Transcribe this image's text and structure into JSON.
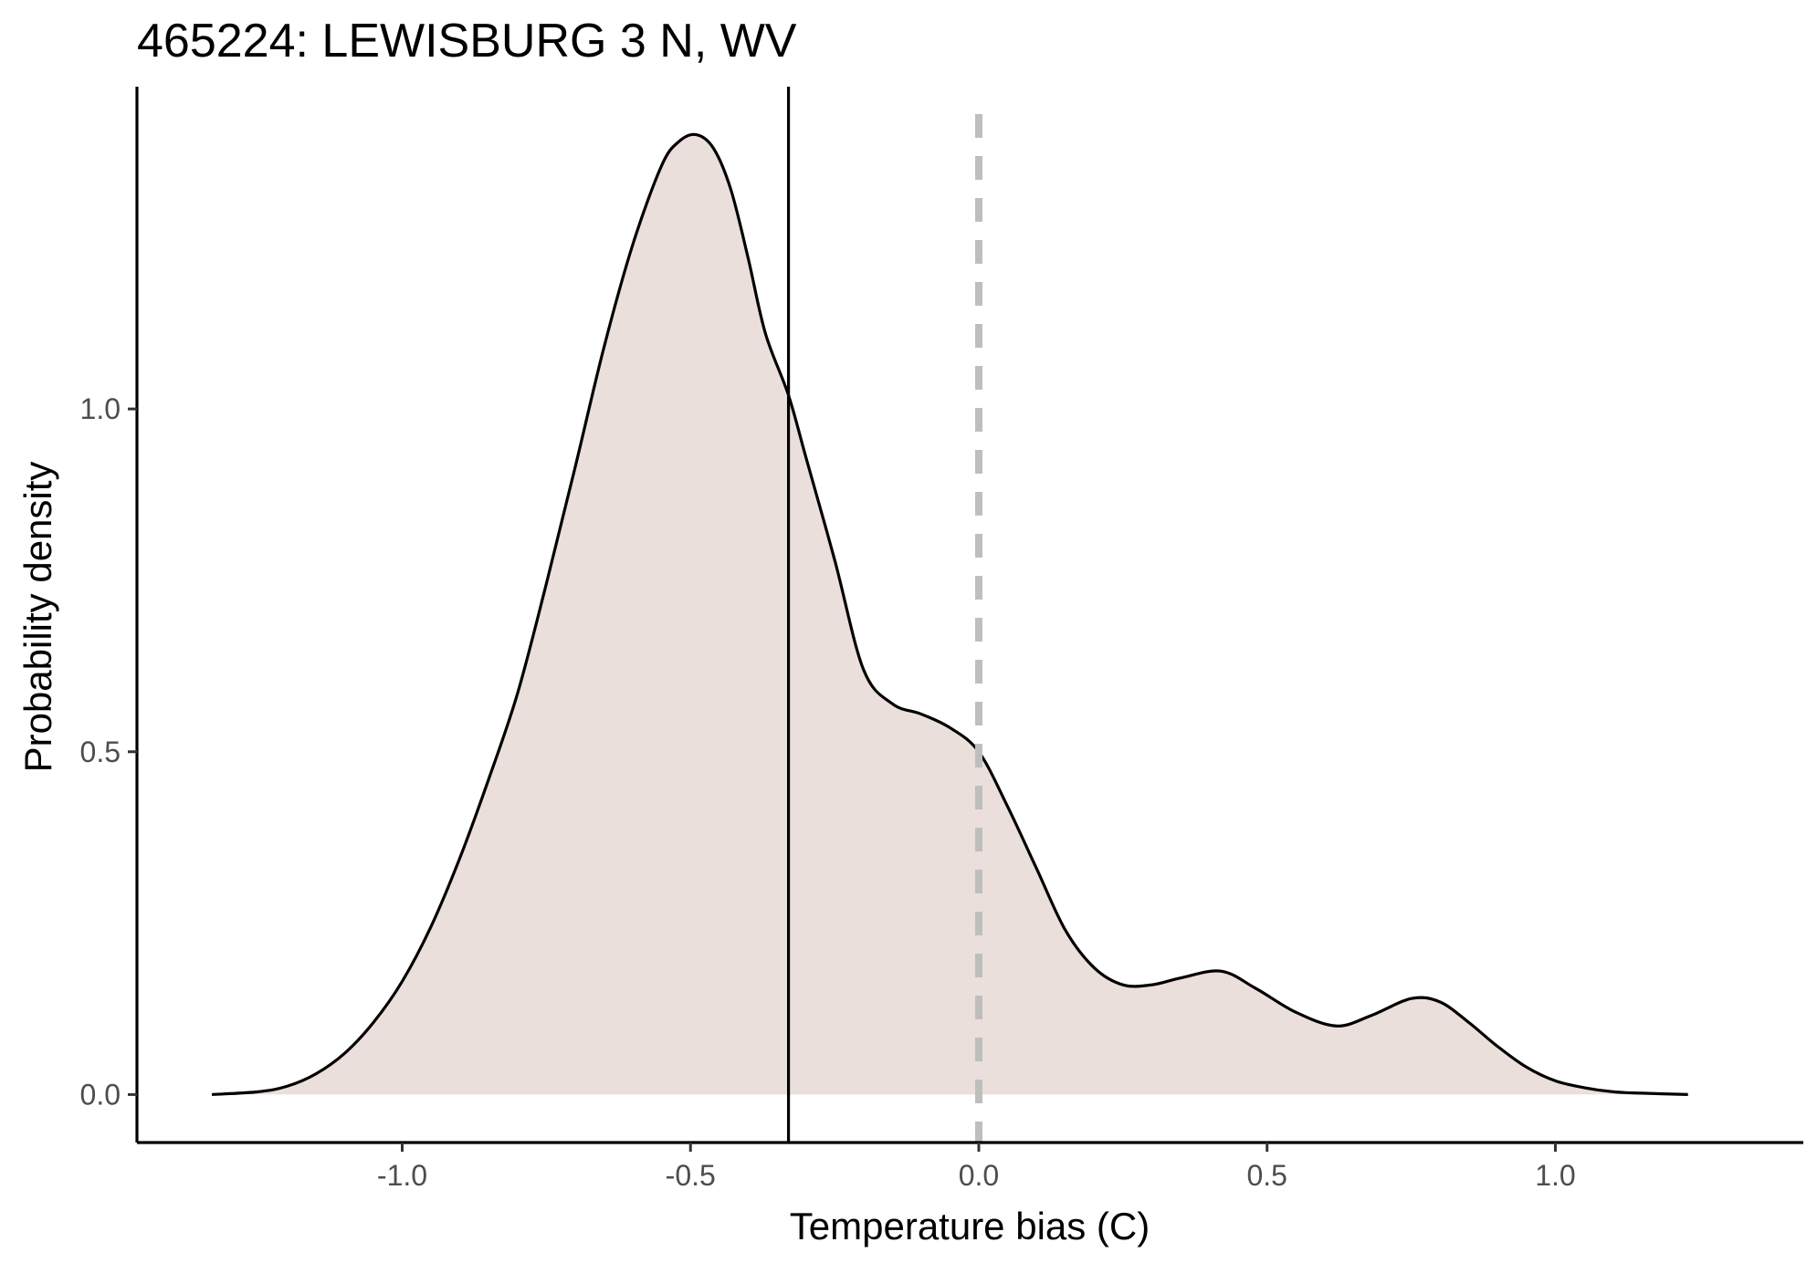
{
  "chart_data": {
    "type": "area",
    "title": "465224: LEWISBURG 3 N, WV",
    "xlabel": "Temperature bias (C)",
    "ylabel": "Probability density",
    "xlim": [
      -1.46,
      1.43
    ],
    "ylim": [
      -0.07,
      1.47
    ],
    "x_ticks": [
      -1.0,
      -0.5,
      0.0,
      0.5,
      1.0
    ],
    "x_tick_labels": [
      "-1.0",
      "-0.5",
      "0.0",
      "0.5",
      "1.0"
    ],
    "y_ticks": [
      0.0,
      0.5,
      1.0
    ],
    "y_tick_labels": [
      "0.0",
      "0.5",
      "1.0"
    ],
    "grid": false,
    "fill_color": "#ebdfdb",
    "line_color": "#000000",
    "reference_lines": [
      {
        "name": "mean-bias",
        "x": -0.33,
        "style": "solid",
        "color": "#000000"
      },
      {
        "name": "zero-bias",
        "x": 0.0,
        "style": "dashed",
        "color": "#bebebe"
      }
    ],
    "series": [
      {
        "name": "density",
        "x": [
          -1.33,
          -1.25,
          -1.2,
          -1.15,
          -1.1,
          -1.05,
          -1.0,
          -0.95,
          -0.9,
          -0.85,
          -0.8,
          -0.75,
          -0.7,
          -0.65,
          -0.6,
          -0.55,
          -0.52,
          -0.49,
          -0.46,
          -0.43,
          -0.4,
          -0.37,
          -0.33,
          -0.3,
          -0.25,
          -0.2,
          -0.15,
          -0.1,
          -0.05,
          0.0,
          0.05,
          0.1,
          0.15,
          0.2,
          0.25,
          0.3,
          0.35,
          0.42,
          0.48,
          0.55,
          0.62,
          0.68,
          0.75,
          0.8,
          0.85,
          0.9,
          0.95,
          1.0,
          1.05,
          1.1,
          1.15,
          1.23
        ],
        "values": [
          0.0,
          0.004,
          0.012,
          0.03,
          0.06,
          0.105,
          0.165,
          0.245,
          0.345,
          0.46,
          0.585,
          0.745,
          0.915,
          1.09,
          1.24,
          1.355,
          1.39,
          1.4,
          1.38,
          1.32,
          1.22,
          1.11,
          1.02,
          0.93,
          0.78,
          0.62,
          0.57,
          0.555,
          0.535,
          0.5,
          0.42,
          0.33,
          0.24,
          0.185,
          0.16,
          0.16,
          0.17,
          0.18,
          0.155,
          0.12,
          0.1,
          0.115,
          0.14,
          0.135,
          0.105,
          0.07,
          0.04,
          0.02,
          0.01,
          0.004,
          0.002,
          0.0
        ]
      }
    ]
  }
}
